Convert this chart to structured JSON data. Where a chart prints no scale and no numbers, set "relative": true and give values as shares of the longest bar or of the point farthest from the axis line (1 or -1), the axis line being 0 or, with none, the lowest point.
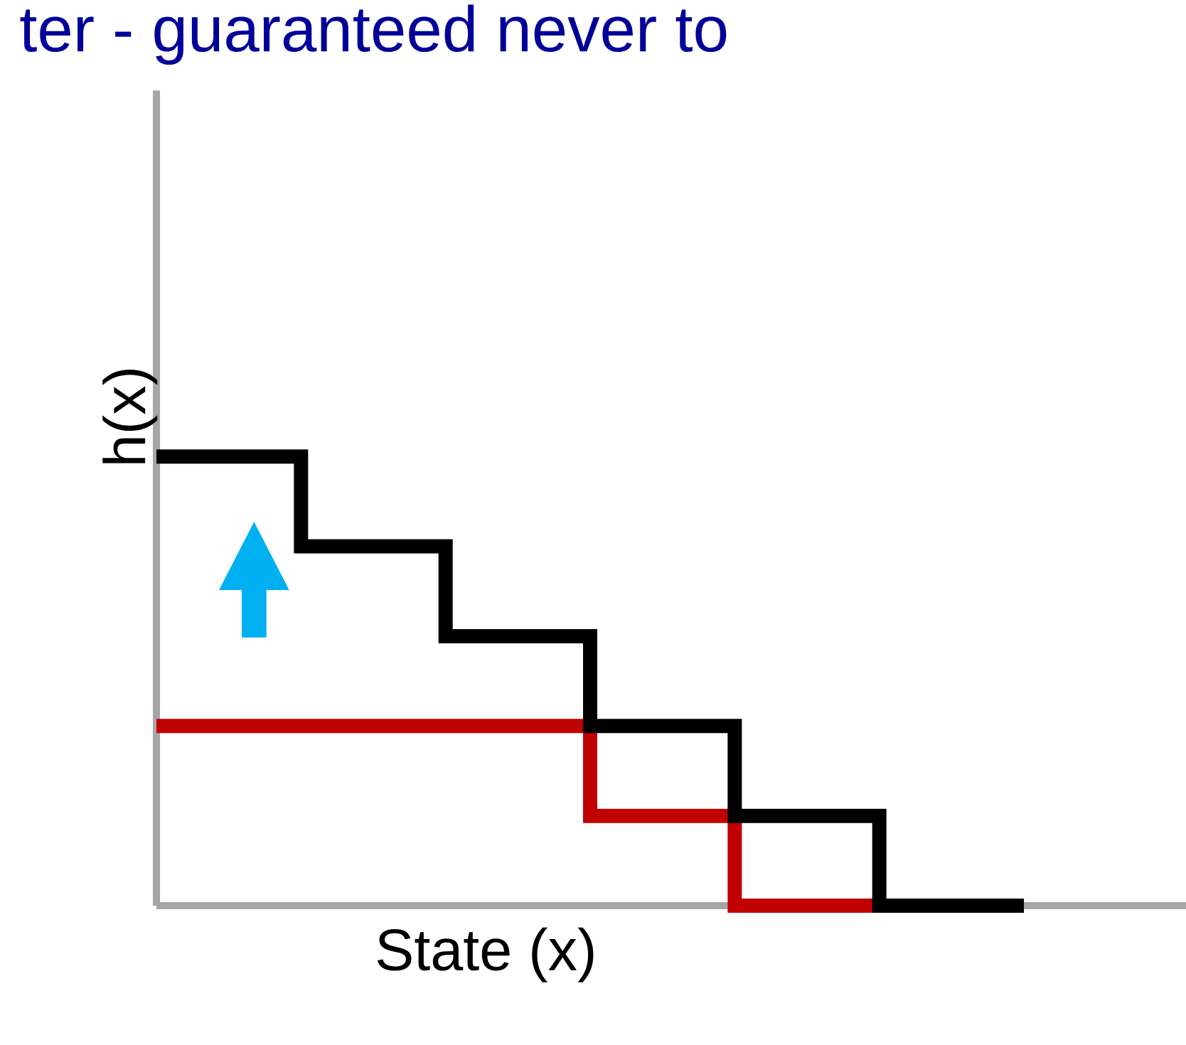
{
  "chart_data": {
    "type": "step",
    "title": "ter - guaranteed never to",
    "xlabel": "State (x)",
    "ylabel": "h(x)",
    "relative": true,
    "categories": [
      null,
      null,
      null,
      null,
      null,
      null,
      null
    ],
    "series": [
      {
        "color": "#c00000",
        "values": [
          0.4,
          0.4,
          0.4,
          0.2,
          0,
          0,
          0
        ]
      },
      {
        "color": "#000000",
        "values": [
          1,
          0.8,
          0.6,
          0.4,
          0.2,
          0,
          0
        ]
      }
    ],
    "tick_labels": false
  }
}
